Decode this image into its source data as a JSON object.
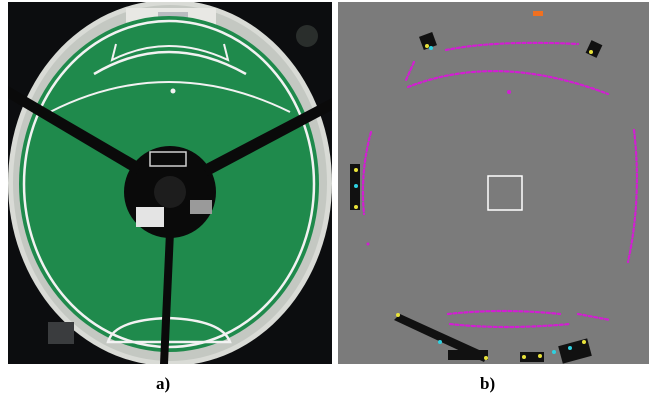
{
  "figure": {
    "panel_a": {
      "caption": "a)"
    },
    "panel_b": {
      "caption": "b)"
    }
  },
  "colors": {
    "field_green": "#1f8a4c",
    "field_line": "#f2f2f2",
    "mirror_black": "#0a0a0a",
    "map_background": "#7b7b7b",
    "line_points": "#d21ed2",
    "obstacle": "#111111",
    "marker_yellow": "#e8e23a",
    "marker_cyan": "#2fd0e0",
    "ball_orange": "#f07020",
    "robot_box": "#ffffff"
  }
}
